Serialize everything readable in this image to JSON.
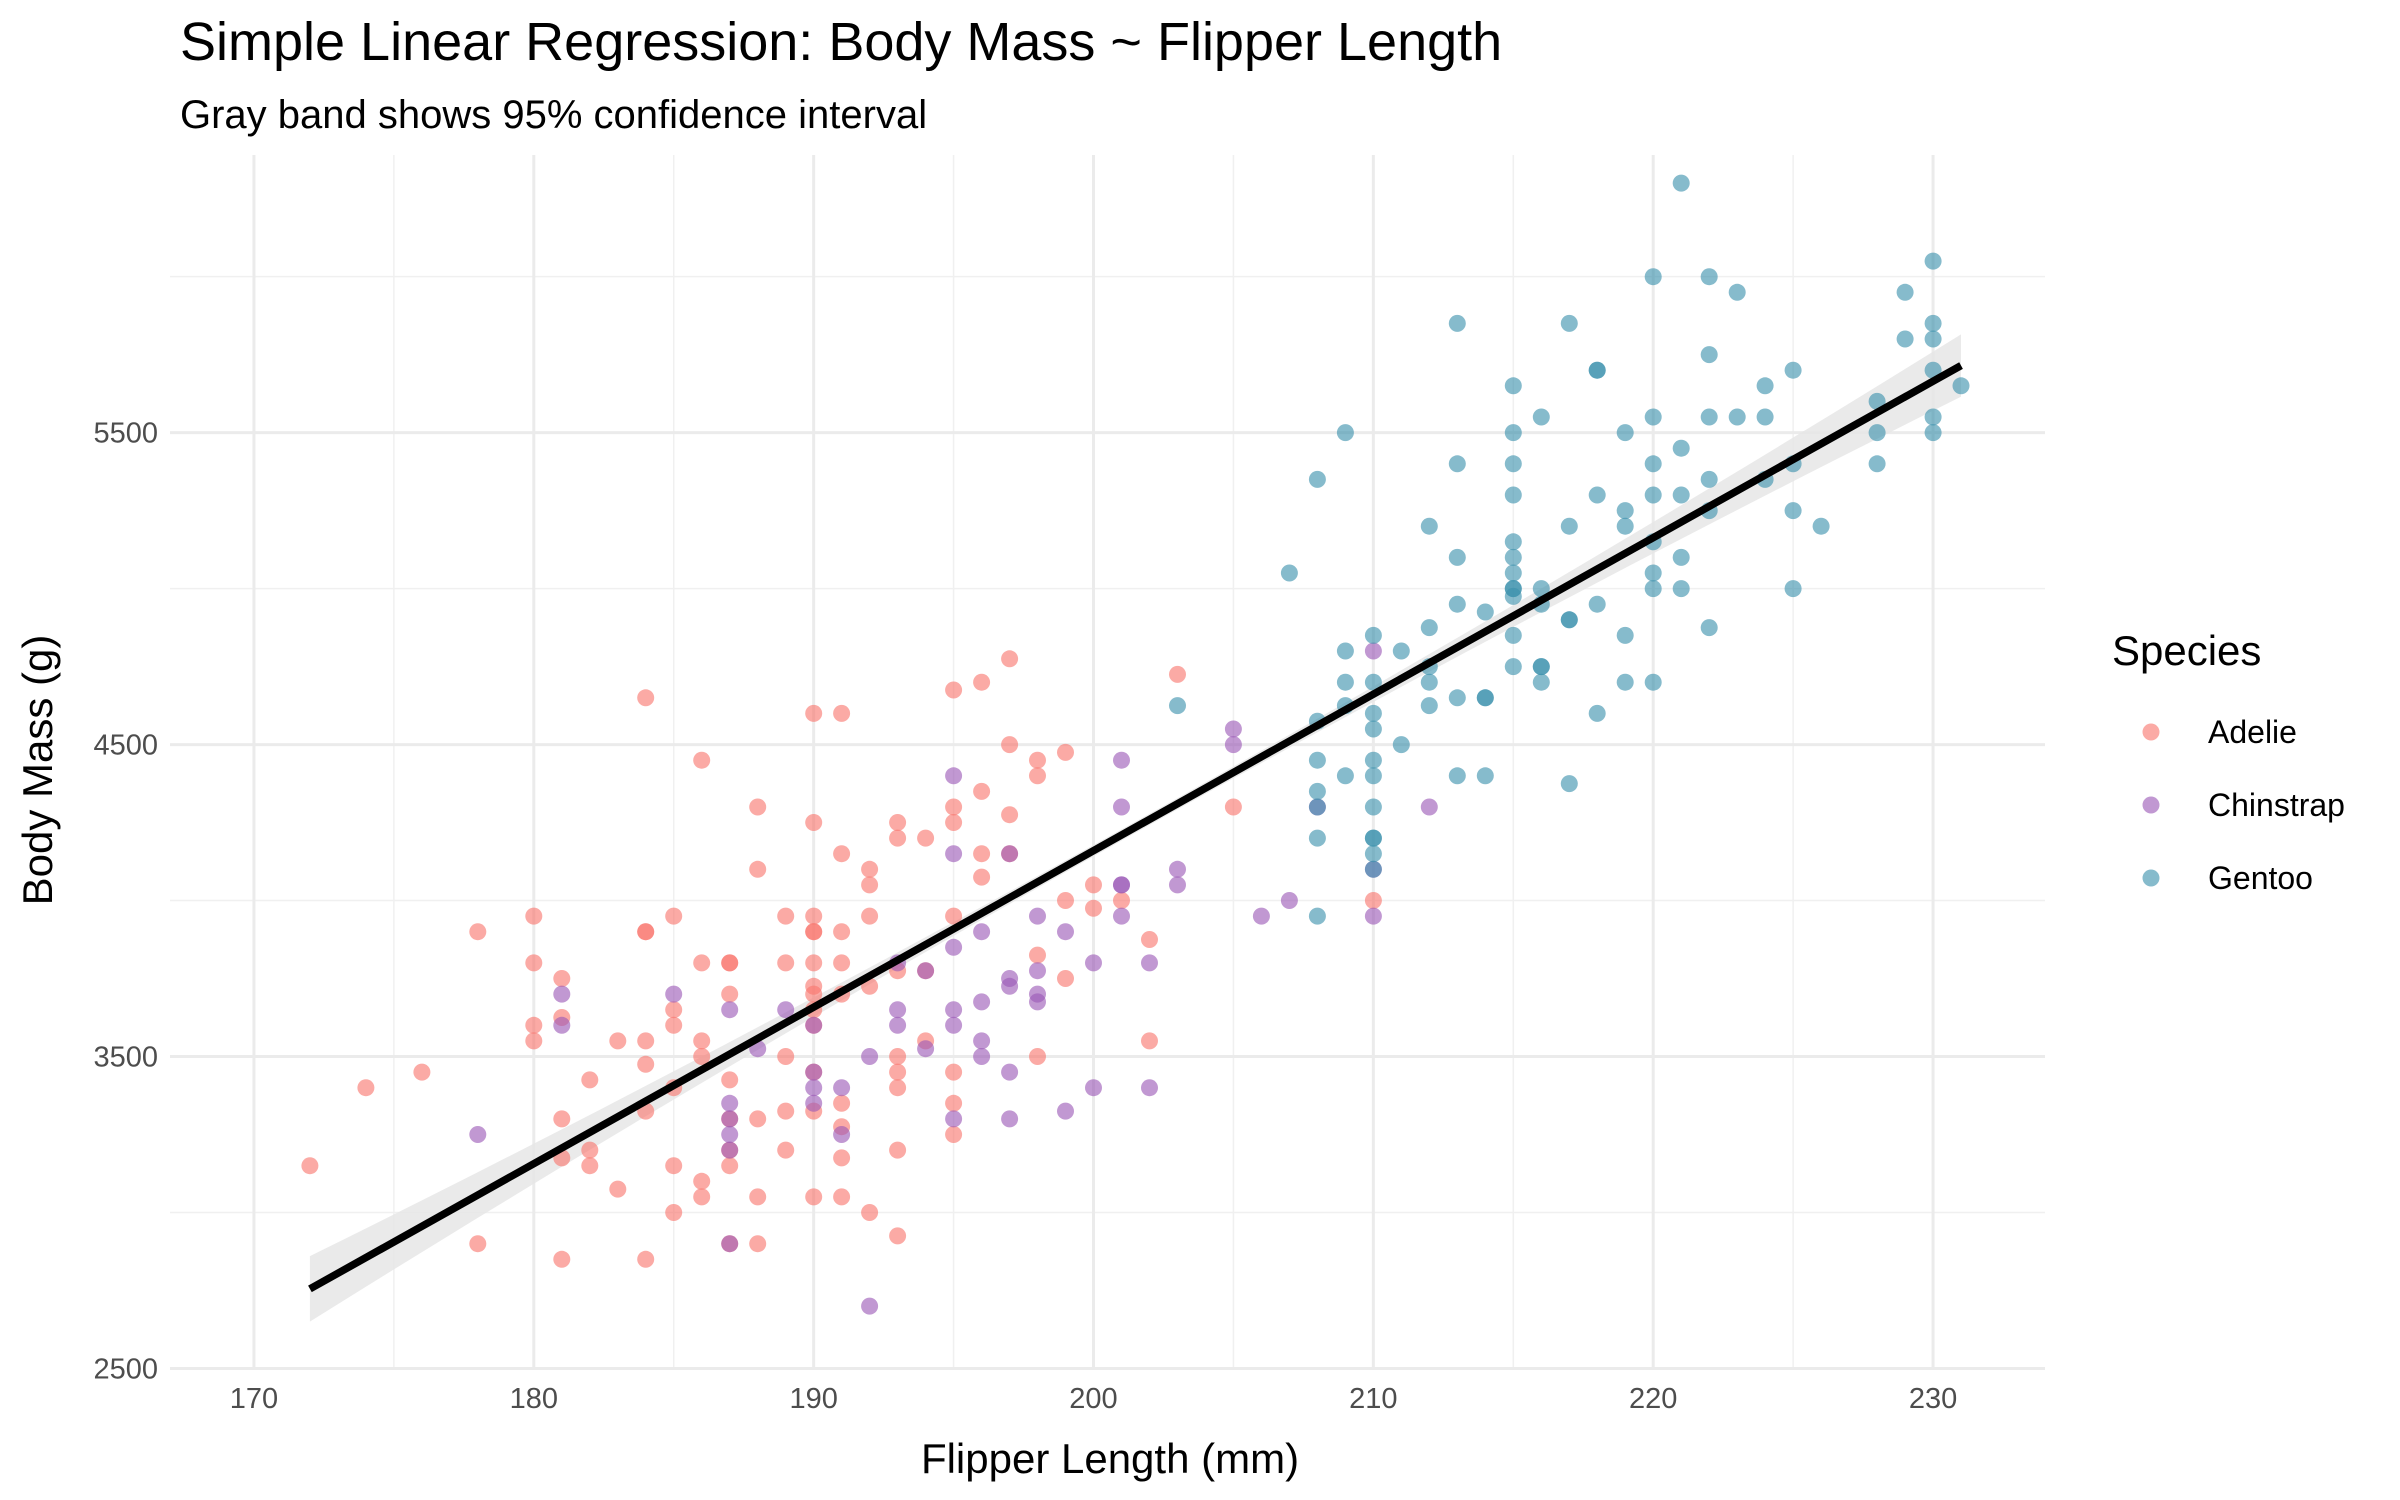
{
  "chart_data": {
    "type": "scatter",
    "title": "Simple Linear Regression: Body Mass ~ Flipper Length",
    "subtitle": "Gray band shows 95% confidence interval",
    "xlabel": "Flipper Length (mm)",
    "ylabel": "Body Mass (g)",
    "xlim": [
      167,
      234
    ],
    "ylim": [
      2495,
      6390
    ],
    "xticks": [
      170,
      180,
      190,
      200,
      210,
      220,
      230
    ],
    "yticks": [
      2500,
      3500,
      4500,
      5500
    ],
    "grid": true,
    "legend": {
      "title": "Species",
      "position": "right"
    },
    "regression": {
      "x": [
        172,
        231
      ],
      "y": [
        2755,
        5715
      ],
      "ci_halfwidth": [
        105,
        100
      ],
      "color": "#000000",
      "band_color": "#e6e6e6"
    },
    "series": [
      {
        "name": "Adelie",
        "color": "#F8766D",
        "points": [
          [
            172,
            3150
          ],
          [
            174,
            3400
          ],
          [
            176,
            3450
          ],
          [
            178,
            3900
          ],
          [
            178,
            2900
          ],
          [
            180,
            3950
          ],
          [
            180,
            3800
          ],
          [
            180,
            3600
          ],
          [
            180,
            3550
          ],
          [
            181,
            3750
          ],
          [
            181,
            3625
          ],
          [
            181,
            3300
          ],
          [
            181,
            3175
          ],
          [
            181,
            2850
          ],
          [
            182,
            3425
          ],
          [
            182,
            3200
          ],
          [
            182,
            3150
          ],
          [
            183,
            3550
          ],
          [
            183,
            3075
          ],
          [
            184,
            4650
          ],
          [
            184,
            3900
          ],
          [
            184,
            3900
          ],
          [
            184,
            3550
          ],
          [
            184,
            3475
          ],
          [
            184,
            3325
          ],
          [
            184,
            2850
          ],
          [
            185,
            3950
          ],
          [
            185,
            3650
          ],
          [
            185,
            3600
          ],
          [
            185,
            3400
          ],
          [
            185,
            3150
          ],
          [
            185,
            3000
          ],
          [
            186,
            4450
          ],
          [
            186,
            3800
          ],
          [
            186,
            3550
          ],
          [
            186,
            3500
          ],
          [
            186,
            3100
          ],
          [
            186,
            3050
          ],
          [
            187,
            3800
          ],
          [
            187,
            3800
          ],
          [
            187,
            3700
          ],
          [
            187,
            3425
          ],
          [
            187,
            3300
          ],
          [
            187,
            3200
          ],
          [
            187,
            3150
          ],
          [
            187,
            2900
          ],
          [
            188,
            4300
          ],
          [
            188,
            4100
          ],
          [
            188,
            3300
          ],
          [
            188,
            3050
          ],
          [
            188,
            2900
          ],
          [
            189,
            3950
          ],
          [
            189,
            3800
          ],
          [
            189,
            3500
          ],
          [
            189,
            3325
          ],
          [
            189,
            3200
          ],
          [
            190,
            4600
          ],
          [
            190,
            4250
          ],
          [
            190,
            3950
          ],
          [
            190,
            3900
          ],
          [
            190,
            3900
          ],
          [
            190,
            3800
          ],
          [
            190,
            3725
          ],
          [
            190,
            3700
          ],
          [
            190,
            3650
          ],
          [
            190,
            3600
          ],
          [
            190,
            3450
          ],
          [
            190,
            3325
          ],
          [
            190,
            3050
          ],
          [
            191,
            4600
          ],
          [
            191,
            4150
          ],
          [
            191,
            3900
          ],
          [
            191,
            3800
          ],
          [
            191,
            3700
          ],
          [
            191,
            3350
          ],
          [
            191,
            3275
          ],
          [
            191,
            3175
          ],
          [
            191,
            3050
          ],
          [
            192,
            4100
          ],
          [
            192,
            4050
          ],
          [
            192,
            3950
          ],
          [
            192,
            3725
          ],
          [
            192,
            3000
          ],
          [
            193,
            4250
          ],
          [
            193,
            4200
          ],
          [
            193,
            3775
          ],
          [
            193,
            3500
          ],
          [
            193,
            3450
          ],
          [
            193,
            3400
          ],
          [
            193,
            3200
          ],
          [
            193,
            2925
          ],
          [
            194,
            4200
          ],
          [
            194,
            3775
          ],
          [
            194,
            3550
          ],
          [
            195,
            4675
          ],
          [
            195,
            4300
          ],
          [
            195,
            4250
          ],
          [
            195,
            3950
          ],
          [
            195,
            3450
          ],
          [
            195,
            3350
          ],
          [
            195,
            3250
          ],
          [
            196,
            4700
          ],
          [
            196,
            4350
          ],
          [
            196,
            4150
          ],
          [
            196,
            4075
          ],
          [
            197,
            4775
          ],
          [
            197,
            4500
          ],
          [
            197,
            4275
          ],
          [
            197,
            4150
          ],
          [
            198,
            4450
          ],
          [
            198,
            4400
          ],
          [
            198,
            3825
          ],
          [
            198,
            3500
          ],
          [
            199,
            4475
          ],
          [
            199,
            4000
          ],
          [
            199,
            3750
          ],
          [
            200,
            4050
          ],
          [
            200,
            3975
          ],
          [
            201,
            4000
          ],
          [
            202,
            3875
          ],
          [
            202,
            3550
          ],
          [
            203,
            4725
          ],
          [
            205,
            4300
          ],
          [
            210,
            4000
          ]
        ]
      },
      {
        "name": "Chinstrap",
        "color": "#9B59B6",
        "points": [
          [
            178,
            3250
          ],
          [
            181,
            3700
          ],
          [
            181,
            3600
          ],
          [
            185,
            3700
          ],
          [
            187,
            3650
          ],
          [
            187,
            3350
          ],
          [
            187,
            3300
          ],
          [
            187,
            3250
          ],
          [
            187,
            3200
          ],
          [
            187,
            2900
          ],
          [
            188,
            3525
          ],
          [
            189,
            3650
          ],
          [
            190,
            3600
          ],
          [
            190,
            3450
          ],
          [
            190,
            3400
          ],
          [
            190,
            3350
          ],
          [
            191,
            3400
          ],
          [
            191,
            3250
          ],
          [
            192,
            3500
          ],
          [
            192,
            2700
          ],
          [
            193,
            3800
          ],
          [
            193,
            3650
          ],
          [
            193,
            3600
          ],
          [
            194,
            3775
          ],
          [
            194,
            3525
          ],
          [
            195,
            4400
          ],
          [
            195,
            4150
          ],
          [
            195,
            3850
          ],
          [
            195,
            3650
          ],
          [
            195,
            3600
          ],
          [
            195,
            3300
          ],
          [
            196,
            3900
          ],
          [
            196,
            3675
          ],
          [
            196,
            3550
          ],
          [
            196,
            3500
          ],
          [
            197,
            4150
          ],
          [
            197,
            3750
          ],
          [
            197,
            3725
          ],
          [
            197,
            3450
          ],
          [
            197,
            3300
          ],
          [
            198,
            3950
          ],
          [
            198,
            3775
          ],
          [
            198,
            3700
          ],
          [
            198,
            3675
          ],
          [
            199,
            3900
          ],
          [
            199,
            3325
          ],
          [
            200,
            3800
          ],
          [
            200,
            3400
          ],
          [
            201,
            4450
          ],
          [
            201,
            4300
          ],
          [
            201,
            4050
          ],
          [
            201,
            4050
          ],
          [
            201,
            3950
          ],
          [
            202,
            3800
          ],
          [
            202,
            3400
          ],
          [
            203,
            4100
          ],
          [
            203,
            4050
          ],
          [
            205,
            4550
          ],
          [
            205,
            4500
          ],
          [
            206,
            3950
          ],
          [
            207,
            4000
          ],
          [
            208,
            4300
          ],
          [
            210,
            4800
          ],
          [
            210,
            4100
          ],
          [
            210,
            3950
          ],
          [
            212,
            4300
          ]
        ]
      },
      {
        "name": "Gentoo",
        "color": "#3C91AC",
        "points": [
          [
            203,
            4625
          ],
          [
            207,
            5050
          ],
          [
            208,
            5350
          ],
          [
            208,
            4575
          ],
          [
            208,
            4450
          ],
          [
            208,
            4350
          ],
          [
            208,
            4300
          ],
          [
            208,
            4200
          ],
          [
            208,
            3950
          ],
          [
            209,
            5500
          ],
          [
            209,
            4800
          ],
          [
            209,
            4700
          ],
          [
            209,
            4625
          ],
          [
            209,
            4400
          ],
          [
            210,
            4850
          ],
          [
            210,
            4700
          ],
          [
            210,
            4600
          ],
          [
            210,
            4550
          ],
          [
            210,
            4450
          ],
          [
            210,
            4400
          ],
          [
            210,
            4300
          ],
          [
            210,
            4200
          ],
          [
            210,
            4200
          ],
          [
            210,
            4150
          ],
          [
            210,
            4100
          ],
          [
            211,
            4800
          ],
          [
            211,
            4500
          ],
          [
            212,
            5200
          ],
          [
            212,
            4875
          ],
          [
            212,
            4750
          ],
          [
            212,
            4700
          ],
          [
            212,
            4625
          ],
          [
            213,
            5850
          ],
          [
            213,
            5400
          ],
          [
            213,
            5100
          ],
          [
            213,
            4950
          ],
          [
            213,
            4650
          ],
          [
            213,
            4400
          ],
          [
            214,
            4925
          ],
          [
            214,
            4650
          ],
          [
            214,
            4650
          ],
          [
            214,
            4400
          ],
          [
            215,
            5650
          ],
          [
            215,
            5500
          ],
          [
            215,
            5400
          ],
          [
            215,
            5300
          ],
          [
            215,
            5150
          ],
          [
            215,
            5100
          ],
          [
            215,
            5050
          ],
          [
            215,
            5000
          ],
          [
            215,
            5000
          ],
          [
            215,
            4975
          ],
          [
            215,
            4850
          ],
          [
            215,
            4750
          ],
          [
            216,
            5550
          ],
          [
            216,
            5000
          ],
          [
            216,
            4950
          ],
          [
            216,
            4750
          ],
          [
            216,
            4750
          ],
          [
            216,
            4700
          ],
          [
            217,
            5850
          ],
          [
            217,
            5200
          ],
          [
            217,
            4900
          ],
          [
            217,
            4900
          ],
          [
            217,
            4375
          ],
          [
            218,
            5700
          ],
          [
            218,
            5700
          ],
          [
            218,
            5300
          ],
          [
            218,
            4950
          ],
          [
            218,
            4600
          ],
          [
            219,
            5500
          ],
          [
            219,
            5250
          ],
          [
            219,
            5200
          ],
          [
            219,
            4850
          ],
          [
            219,
            4700
          ],
          [
            220,
            6000
          ],
          [
            220,
            5550
          ],
          [
            220,
            5400
          ],
          [
            220,
            5300
          ],
          [
            220,
            5150
          ],
          [
            220,
            5050
          ],
          [
            220,
            5000
          ],
          [
            220,
            4700
          ],
          [
            221,
            6300
          ],
          [
            221,
            5450
          ],
          [
            221,
            5300
          ],
          [
            221,
            5100
          ],
          [
            221,
            5000
          ],
          [
            222,
            6000
          ],
          [
            222,
            5750
          ],
          [
            222,
            5550
          ],
          [
            222,
            5350
          ],
          [
            222,
            5250
          ],
          [
            222,
            4875
          ],
          [
            223,
            5950
          ],
          [
            223,
            5550
          ],
          [
            224,
            5650
          ],
          [
            224,
            5550
          ],
          [
            224,
            5350
          ],
          [
            225,
            5700
          ],
          [
            225,
            5400
          ],
          [
            225,
            5250
          ],
          [
            225,
            5000
          ],
          [
            226,
            5200
          ],
          [
            228,
            5600
          ],
          [
            228,
            5500
          ],
          [
            228,
            5400
          ],
          [
            229,
            5950
          ],
          [
            229,
            5800
          ],
          [
            230,
            6050
          ],
          [
            230,
            5850
          ],
          [
            230,
            5800
          ],
          [
            230,
            5700
          ],
          [
            230,
            5550
          ],
          [
            230,
            5500
          ],
          [
            231,
            5650
          ]
        ]
      }
    ]
  }
}
